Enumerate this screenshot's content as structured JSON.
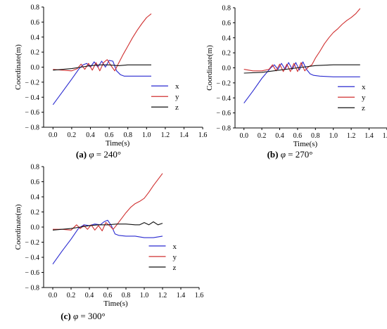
{
  "chart_data": [
    {
      "type": "line",
      "caption": {
        "tag": "(a)",
        "symbol": "φ",
        "rest": " = 240°"
      },
      "xlabel": "Time(s)",
      "ylabel": "Coordinate(m)",
      "xlim": [
        -0.1,
        1.6
      ],
      "ylim": [
        -0.8,
        0.8
      ],
      "xticks": [
        0.0,
        0.2,
        0.4,
        0.6,
        0.8,
        1.0,
        1.2,
        1.4,
        1.6
      ],
      "yticks": [
        0.8,
        0.6,
        0.4,
        0.2,
        0.0,
        -0.2,
        -0.4,
        -0.6,
        -0.8
      ],
      "grid": false,
      "legend": "bottom-right",
      "series": [
        {
          "name": "x",
          "color": "#2a2ad0",
          "x": [
            0.0,
            0.1,
            0.2,
            0.28,
            0.32,
            0.36,
            0.4,
            0.44,
            0.48,
            0.52,
            0.56,
            0.6,
            0.64,
            0.68,
            0.72,
            0.76,
            0.8,
            0.9,
            1.0,
            1.05
          ],
          "y": [
            -0.5,
            -0.33,
            -0.16,
            -0.02,
            0.03,
            0.05,
            0.0,
            0.07,
            0.0,
            0.08,
            0.0,
            0.09,
            0.08,
            -0.05,
            -0.1,
            -0.12,
            -0.12,
            -0.12,
            -0.12,
            -0.12
          ]
        },
        {
          "name": "y",
          "color": "#d03030",
          "x": [
            0.0,
            0.1,
            0.2,
            0.26,
            0.3,
            0.34,
            0.38,
            0.42,
            0.46,
            0.5,
            0.54,
            0.58,
            0.62,
            0.66,
            0.7,
            0.75,
            0.8,
            0.85,
            0.9,
            0.95,
            1.0,
            1.05
          ],
          "y": [
            -0.03,
            -0.04,
            -0.05,
            -0.02,
            0.04,
            -0.03,
            0.05,
            -0.04,
            0.06,
            -0.05,
            0.06,
            0.1,
            0.02,
            -0.05,
            0.05,
            0.17,
            0.28,
            0.39,
            0.49,
            0.58,
            0.66,
            0.71
          ]
        },
        {
          "name": "z",
          "color": "#111111",
          "x": [
            0.0,
            0.1,
            0.2,
            0.3,
            0.4,
            0.5,
            0.6,
            0.7,
            0.8,
            0.9,
            1.0,
            1.05
          ],
          "y": [
            -0.04,
            -0.03,
            -0.02,
            0.0,
            0.02,
            0.03,
            0.03,
            0.02,
            0.03,
            0.03,
            0.03,
            0.03
          ]
        }
      ]
    },
    {
      "type": "line",
      "caption": {
        "tag": "(b)",
        "symbol": "φ",
        "rest": " = 270°"
      },
      "xlabel": "Time(s)",
      "ylabel": "Coordinate(m)",
      "xlim": [
        -0.1,
        1.6
      ],
      "ylim": [
        -0.8,
        0.8
      ],
      "xticks": [
        0.0,
        0.2,
        0.4,
        0.6,
        0.8,
        1.0,
        1.2,
        1.4,
        1.6
      ],
      "yticks": [
        0.8,
        0.6,
        0.4,
        0.2,
        0.0,
        -0.2,
        -0.4,
        -0.6,
        -0.8
      ],
      "grid": false,
      "legend": "bottom-right",
      "series": [
        {
          "name": "x",
          "color": "#2a2ad0",
          "x": [
            0.0,
            0.1,
            0.2,
            0.3,
            0.34,
            0.38,
            0.42,
            0.46,
            0.5,
            0.54,
            0.58,
            0.62,
            0.66,
            0.7,
            0.74,
            0.78,
            0.85,
            1.0,
            1.15,
            1.3
          ],
          "y": [
            -0.47,
            -0.31,
            -0.14,
            0.0,
            0.04,
            -0.02,
            0.06,
            -0.02,
            0.07,
            -0.02,
            0.07,
            -0.03,
            0.08,
            -0.02,
            -0.08,
            -0.1,
            -0.11,
            -0.12,
            -0.12,
            -0.12
          ]
        },
        {
          "name": "y",
          "color": "#d03030",
          "x": [
            0.0,
            0.1,
            0.2,
            0.28,
            0.32,
            0.36,
            0.4,
            0.44,
            0.48,
            0.52,
            0.56,
            0.6,
            0.64,
            0.68,
            0.72,
            0.76,
            0.8,
            0.85,
            0.9,
            0.95,
            1.0,
            1.05,
            1.1,
            1.15,
            1.2,
            1.25,
            1.3
          ],
          "y": [
            -0.02,
            -0.04,
            -0.04,
            -0.02,
            0.04,
            -0.04,
            0.05,
            -0.05,
            0.05,
            -0.05,
            0.06,
            -0.05,
            0.07,
            -0.04,
            0.01,
            0.04,
            0.13,
            0.22,
            0.32,
            0.4,
            0.47,
            0.52,
            0.58,
            0.63,
            0.67,
            0.72,
            0.79
          ]
        },
        {
          "name": "z",
          "color": "#111111",
          "x": [
            0.0,
            0.2,
            0.4,
            0.6,
            0.8,
            1.0,
            1.2,
            1.3
          ],
          "y": [
            -0.07,
            -0.06,
            -0.03,
            0.0,
            0.03,
            0.04,
            0.04,
            0.04
          ]
        }
      ]
    },
    {
      "type": "line",
      "caption": {
        "tag": "(c)",
        "symbol": "φ",
        "rest": " = 300°"
      },
      "xlabel": "Time(s)",
      "ylabel": "Coordinate(m)",
      "xlim": [
        -0.1,
        1.6
      ],
      "ylim": [
        -0.8,
        0.8
      ],
      "xticks": [
        0.0,
        0.2,
        0.4,
        0.6,
        0.8,
        1.0,
        1.2,
        1.4,
        1.6
      ],
      "yticks": [
        0.8,
        0.6,
        0.4,
        0.2,
        0.0,
        -0.2,
        -0.4,
        -0.6,
        -0.8
      ],
      "grid": false,
      "legend": "bottom-right",
      "series": [
        {
          "name": "x",
          "color": "#2a2ad0",
          "x": [
            0.0,
            0.1,
            0.2,
            0.28,
            0.34,
            0.4,
            0.46,
            0.52,
            0.56,
            0.6,
            0.64,
            0.68,
            0.72,
            0.8,
            0.9,
            1.0,
            1.1,
            1.2
          ],
          "y": [
            -0.49,
            -0.32,
            -0.16,
            -0.02,
            0.03,
            0.02,
            0.04,
            0.03,
            0.07,
            0.09,
            0.02,
            -0.09,
            -0.11,
            -0.12,
            -0.12,
            -0.14,
            -0.14,
            -0.12
          ]
        },
        {
          "name": "y",
          "color": "#d03030",
          "x": [
            0.0,
            0.1,
            0.2,
            0.26,
            0.3,
            0.34,
            0.38,
            0.42,
            0.46,
            0.5,
            0.54,
            0.58,
            0.62,
            0.66,
            0.7,
            0.75,
            0.8,
            0.85,
            0.9,
            0.95,
            1.0,
            1.05,
            1.1,
            1.15,
            1.2
          ],
          "y": [
            -0.03,
            -0.03,
            -0.04,
            0.03,
            -0.02,
            0.02,
            -0.03,
            0.03,
            -0.04,
            0.02,
            -0.05,
            0.06,
            0.02,
            -0.03,
            0.03,
            0.11,
            0.19,
            0.26,
            0.31,
            0.34,
            0.38,
            0.46,
            0.55,
            0.63,
            0.71
          ]
        },
        {
          "name": "z",
          "color": "#111111",
          "x": [
            0.0,
            0.1,
            0.2,
            0.3,
            0.4,
            0.5,
            0.6,
            0.7,
            0.8,
            0.9,
            0.95,
            1.0,
            1.05,
            1.1,
            1.15,
            1.2
          ],
          "y": [
            -0.04,
            -0.03,
            -0.02,
            0.0,
            0.02,
            0.03,
            0.03,
            0.04,
            0.04,
            0.03,
            0.03,
            0.06,
            0.03,
            0.07,
            0.03,
            0.05
          ]
        }
      ]
    }
  ]
}
